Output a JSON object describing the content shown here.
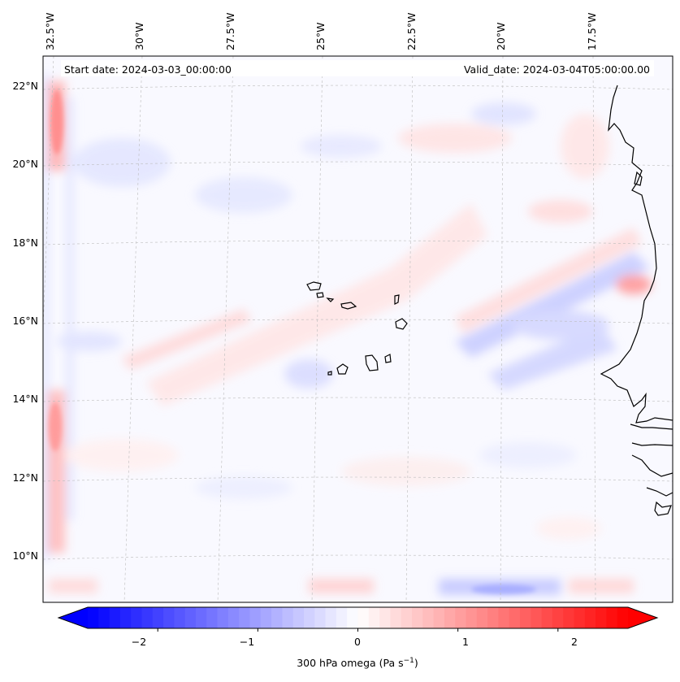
{
  "map": {
    "start_date": "Start date: 2024-03-03_00:00:00",
    "valid_date": "Valid_date: 2024-03-04T05:00:00.00",
    "lon_labels": [
      "32.5°W",
      "30°W",
      "27.5°W",
      "25°W",
      "22.5°W",
      "20°W",
      "17.5°W"
    ],
    "lat_labels": [
      "22°N",
      "20°N",
      "18°N",
      "16°N",
      "14°N",
      "12°N",
      "10°N"
    ],
    "colors": {
      "negative": "#0000ff",
      "positive": "#ff0000",
      "neutral": "#ffffff",
      "coast": "#000000"
    }
  },
  "colorbar": {
    "ticks": [
      "−2",
      "−1",
      "0",
      "1",
      "2"
    ],
    "label_text": "300 hPa omega (Pa s",
    "label_exp": "−1",
    "label_end": ")",
    "min": -2.7,
    "max": 2.7
  }
}
